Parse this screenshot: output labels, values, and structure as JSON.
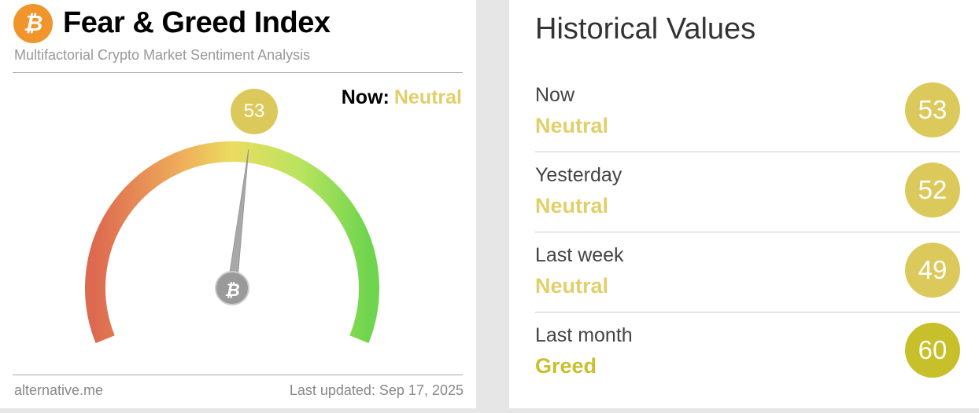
{
  "header": {
    "title": "Fear & Greed Index",
    "subtitle": "Multifactorial Crypto Market Sentiment Analysis",
    "logo_icon": "bitcoin-icon"
  },
  "gauge": {
    "value": 53,
    "now_label": "Now:",
    "now_class": "Neutral",
    "min": 0,
    "max": 100
  },
  "footer": {
    "source": "alternative.me",
    "updated": "Last updated: Sep 17, 2025"
  },
  "historical": {
    "title": "Historical Values",
    "rows": [
      {
        "label": "Now",
        "class": "Neutral",
        "value": "53",
        "color": "#dcc95c",
        "text_color": "#e0cf6a"
      },
      {
        "label": "Yesterday",
        "class": "Neutral",
        "value": "52",
        "color": "#dcc95c",
        "text_color": "#e0cf6a"
      },
      {
        "label": "Last week",
        "class": "Neutral",
        "value": "49",
        "color": "#dcc95c",
        "text_color": "#e0cf6a"
      },
      {
        "label": "Last month",
        "class": "Greed",
        "value": "60",
        "color": "#c8c02a",
        "text_color": "#c8bf2e"
      }
    ]
  }
}
